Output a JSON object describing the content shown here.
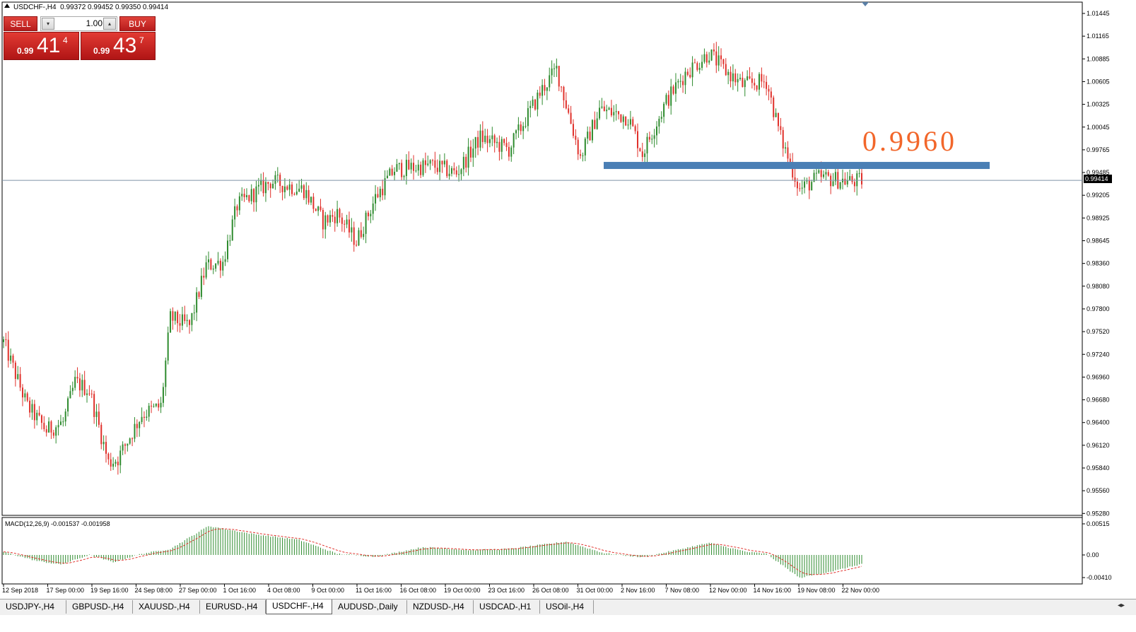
{
  "header": {
    "symbol": "USDCHF-,H4",
    "ohlc": "0.99372 0.99452 0.99350 0.99414"
  },
  "trade_panel": {
    "sell_label": "SELL",
    "buy_label": "BUY",
    "lot_value": "1.00",
    "sell_price_prefix": "0.99",
    "sell_price_big": "41",
    "sell_price_sup": "4",
    "buy_price_prefix": "0.99",
    "buy_price_big": "43",
    "buy_price_sup": "7"
  },
  "annotation": {
    "level_text": "0.9960",
    "level_color": "#4a7fb5",
    "level_text_color": "#f2662a"
  },
  "price_axis": {
    "labels": [
      "1.01445",
      "1.01165",
      "1.00885",
      "1.00605",
      "1.00325",
      "1.00045",
      "0.99765",
      "0.99485",
      "0.99205",
      "0.98925",
      "0.98645",
      "0.98360",
      "0.98080",
      "0.97800",
      "0.97520",
      "0.97240",
      "0.96960",
      "0.96680",
      "0.96400",
      "0.96120",
      "0.95840",
      "0.95560",
      "0.95280"
    ],
    "current_price": "0.99414"
  },
  "time_axis": {
    "labels": [
      "12 Sep 2018",
      "17 Sep 00:00",
      "19 Sep 16:00",
      "24 Sep 08:00",
      "27 Sep 00:00",
      "1 Oct 16:00",
      "4 Oct 08:00",
      "9 Oct 00:00",
      "11 Oct 16:00",
      "16 Oct 08:00",
      "19 Oct 00:00",
      "23 Oct 16:00",
      "26 Oct 08:00",
      "31 Oct 00:00",
      "2 Nov 16:00",
      "7 Nov 08:00",
      "12 Nov 00:00",
      "14 Nov 16:00",
      "19 Nov 08:00",
      "22 Nov 00:00"
    ]
  },
  "macd": {
    "label": "MACD(12,26,9) -0.001537 -0.001958",
    "axis_labels": [
      "0.00515",
      "0.00",
      "-0.00410"
    ]
  },
  "tabs": [
    {
      "label": "USDJPY-,H4",
      "active": false
    },
    {
      "label": "GBPUSD-,H4",
      "active": false
    },
    {
      "label": "XAUUSD-,H4",
      "active": false
    },
    {
      "label": "EURUSD-,H4",
      "active": false
    },
    {
      "label": "USDCHF-,H4",
      "active": true
    },
    {
      "label": "AUDUSD-,Daily",
      "active": false
    },
    {
      "label": "NZDUSD-,H4",
      "active": false
    },
    {
      "label": "USDCAD-,H1",
      "active": false
    },
    {
      "label": "USOil-,H4",
      "active": false
    }
  ],
  "colors": {
    "bull": "#2e8b2e",
    "bear": "#e0302a",
    "grid_border": "#000000",
    "price_line": "#7f93a6",
    "macd_hist": "#2e8b2e",
    "macd_signal": "#e0302a"
  },
  "chart_data": {
    "type": "candlestick",
    "title": "USDCHF-,H4",
    "price_range": [
      0.9526,
      1.0159
    ],
    "waypoints": [
      {
        "t": 0,
        "p": 0.974
      },
      {
        "t": 10,
        "p": 0.966
      },
      {
        "t": 18,
        "p": 0.963
      },
      {
        "t": 25,
        "p": 0.964
      },
      {
        "t": 30,
        "p": 0.969
      },
      {
        "t": 36,
        "p": 0.968
      },
      {
        "t": 44,
        "p": 0.959
      },
      {
        "t": 48,
        "p": 0.9595
      },
      {
        "t": 58,
        "p": 0.965
      },
      {
        "t": 66,
        "p": 0.966
      },
      {
        "t": 70,
        "p": 0.977
      },
      {
        "t": 78,
        "p": 0.976
      },
      {
        "t": 85,
        "p": 0.9835
      },
      {
        "t": 92,
        "p": 0.984
      },
      {
        "t": 98,
        "p": 0.991
      },
      {
        "t": 112,
        "p": 0.994
      },
      {
        "t": 126,
        "p": 0.993
      },
      {
        "t": 134,
        "p": 0.989
      },
      {
        "t": 140,
        "p": 0.99
      },
      {
        "t": 148,
        "p": 0.9865
      },
      {
        "t": 156,
        "p": 0.992
      },
      {
        "t": 164,
        "p": 0.9955
      },
      {
        "t": 180,
        "p": 0.996
      },
      {
        "t": 190,
        "p": 0.995
      },
      {
        "t": 200,
        "p": 0.9995
      },
      {
        "t": 212,
        "p": 0.998
      },
      {
        "t": 226,
        "p": 1.0055
      },
      {
        "t": 232,
        "p": 1.008
      },
      {
        "t": 242,
        "p": 0.997
      },
      {
        "t": 250,
        "p": 1.003
      },
      {
        "t": 262,
        "p": 1.002
      },
      {
        "t": 268,
        "p": 0.9975
      },
      {
        "t": 278,
        "p": 1.004
      },
      {
        "t": 286,
        "p": 1.0075
      },
      {
        "t": 296,
        "p": 1.01
      },
      {
        "t": 302,
        "p": 1.008
      },
      {
        "t": 310,
        "p": 1.006
      },
      {
        "t": 320,
        "p": 1.0065
      },
      {
        "t": 326,
        "p": 0.9995
      },
      {
        "t": 334,
        "p": 0.993
      },
      {
        "t": 342,
        "p": 0.9945
      },
      {
        "t": 356,
        "p": 0.994
      },
      {
        "t": 360,
        "p": 0.9941
      }
    ],
    "macd_waypoints": [
      {
        "t": 0,
        "v": 0.0005
      },
      {
        "t": 14,
        "v": -0.001
      },
      {
        "t": 24,
        "v": -0.0016
      },
      {
        "t": 36,
        "v": 0.0
      },
      {
        "t": 46,
        "v": -0.0012
      },
      {
        "t": 58,
        "v": 0.0002
      },
      {
        "t": 70,
        "v": 0.001
      },
      {
        "t": 86,
        "v": 0.0048
      },
      {
        "t": 104,
        "v": 0.0035
      },
      {
        "t": 124,
        "v": 0.0025
      },
      {
        "t": 140,
        "v": 0.0002
      },
      {
        "t": 156,
        "v": -0.0003
      },
      {
        "t": 176,
        "v": 0.0013
      },
      {
        "t": 196,
        "v": 0.0008
      },
      {
        "t": 212,
        "v": 0.001
      },
      {
        "t": 236,
        "v": 0.0022
      },
      {
        "t": 252,
        "v": 0.0003
      },
      {
        "t": 268,
        "v": -0.0004
      },
      {
        "t": 282,
        "v": 0.0008
      },
      {
        "t": 296,
        "v": 0.002
      },
      {
        "t": 312,
        "v": 0.0005
      },
      {
        "t": 320,
        "v": 0.0002
      },
      {
        "t": 334,
        "v": -0.0038
      },
      {
        "t": 350,
        "v": -0.0025
      },
      {
        "t": 360,
        "v": -0.0015
      }
    ],
    "support_level": 0.996,
    "current_price": 0.99414
  }
}
